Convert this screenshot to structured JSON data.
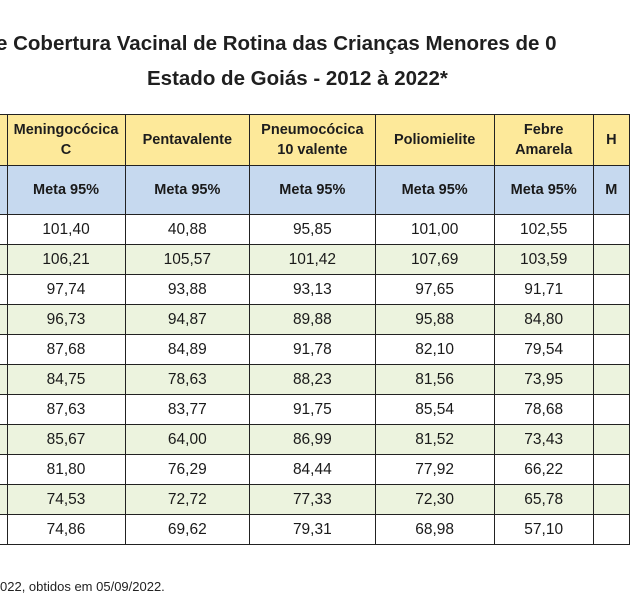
{
  "title": {
    "line1": "e Cobertura Vacinal de Rotina das Crianças Menores de 0",
    "line2": "Estado de Goiás - 2012 à 2022*"
  },
  "table": {
    "headers": [
      {
        "line1": "",
        "line2": ""
      },
      {
        "line1": "Meningocócica",
        "line2": "C"
      },
      {
        "line1": "Pentavalente",
        "line2": ""
      },
      {
        "line1": "Pneumocócica",
        "line2": "10 valente"
      },
      {
        "line1": "Poliomielite",
        "line2": ""
      },
      {
        "line1": "Febre",
        "line2": "Amarela"
      },
      {
        "line1": "H",
        "line2": ""
      }
    ],
    "meta_row": [
      "",
      "Meta 95%",
      "Meta 95%",
      "Meta 95%",
      "Meta 95%",
      "Meta 95%",
      "M"
    ],
    "rows": [
      [
        "",
        "101,40",
        "40,88",
        "95,85",
        "101,00",
        "102,55",
        ""
      ],
      [
        "",
        "106,21",
        "105,57",
        "101,42",
        "107,69",
        "103,59",
        ""
      ],
      [
        "",
        "97,74",
        "93,88",
        "93,13",
        "97,65",
        "91,71",
        ""
      ],
      [
        "",
        "96,73",
        "94,87",
        "89,88",
        "95,88",
        "84,80",
        ""
      ],
      [
        "",
        "87,68",
        "84,89",
        "91,78",
        "82,10",
        "79,54",
        ""
      ],
      [
        "",
        "84,75",
        "78,63",
        "88,23",
        "81,56",
        "73,95",
        ""
      ],
      [
        "",
        "87,63",
        "83,77",
        "91,75",
        "85,54",
        "78,68",
        ""
      ],
      [
        "",
        "85,67",
        "64,00",
        "86,99",
        "81,52",
        "73,43",
        ""
      ],
      [
        "",
        "81,80",
        "76,29",
        "84,44",
        "77,92",
        "66,22",
        ""
      ],
      [
        "",
        "74,53",
        "72,72",
        "77,33",
        "72,30",
        "65,78",
        ""
      ],
      [
        "",
        "74,86",
        "69,62",
        "79,31",
        "68,98",
        "57,10",
        ""
      ]
    ]
  },
  "footnote": "022, obtidos em 05/09/2022."
}
